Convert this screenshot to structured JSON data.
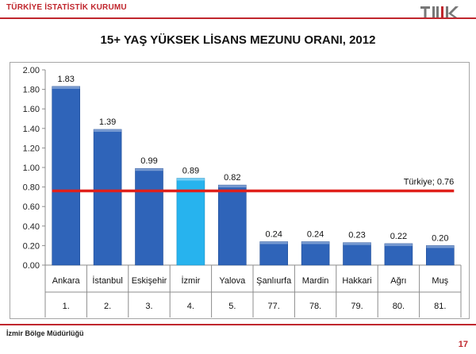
{
  "header": {
    "org": "TÜRKİYE İSTATİSTİK KURUMU",
    "logo_label": "TÜİK"
  },
  "footer": {
    "office": "İzmir Bölge Müdürlüğü",
    "page": "17"
  },
  "colors": {
    "accent": "#c0262d",
    "bar": "#2f64b9",
    "bar_highlight": "#27b3ee",
    "reference_line": "#e0201b"
  },
  "chart_data": {
    "type": "bar",
    "title": "15+ YAŞ YÜKSEK LİSANS MEZUNU ORANI, 2012",
    "categories": [
      "Ankara",
      "İstanbul",
      "Eskişehir",
      "İzmir",
      "Yalova",
      "Şanlıurfa",
      "Mardin",
      "Hakkari",
      "Ağrı",
      "Muş"
    ],
    "ranks": [
      "1.",
      "2.",
      "3.",
      "4.",
      "5.",
      "77.",
      "78.",
      "79.",
      "80.",
      "81."
    ],
    "values": [
      1.83,
      1.39,
      0.99,
      0.89,
      0.82,
      0.24,
      0.24,
      0.23,
      0.22,
      0.2
    ],
    "value_labels": [
      "1.83",
      "1.39",
      "0.99",
      "0.89",
      "0.82",
      "0.24",
      "0.24",
      "0.23",
      "0.22",
      "0.20"
    ],
    "highlight_category": "İzmir",
    "ylim": [
      0,
      2.0
    ],
    "yticks": [
      "0.00",
      "0.20",
      "0.40",
      "0.60",
      "0.80",
      "1.00",
      "1.20",
      "1.40",
      "1.60",
      "1.80",
      "2.00"
    ],
    "reference": {
      "label": "Türkiye; 0.76",
      "value": 0.76
    },
    "xlabel": "",
    "ylabel": "",
    "grid": false,
    "legend": "none"
  }
}
